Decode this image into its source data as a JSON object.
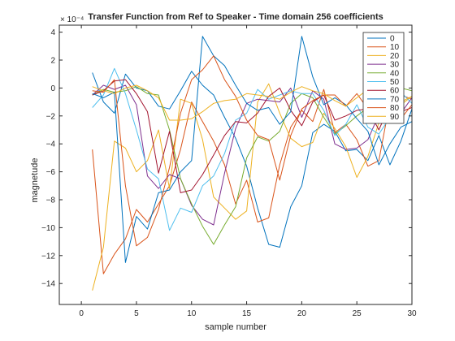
{
  "chart_data": {
    "type": "line",
    "title": "Transfer Function from Ref to Speaker - Time domain 256 coefficients",
    "xlabel": "sample number",
    "ylabel": "magnetude",
    "exponent_label": "× 10⁻⁴",
    "xlim": [
      -2,
      30
    ],
    "ylim": [
      -15.5,
      4.5
    ],
    "xticks": [
      0,
      5,
      10,
      15,
      20,
      25,
      30
    ],
    "yticks": [
      4,
      2,
      0,
      -2,
      -4,
      -6,
      -8,
      -10,
      -12,
      -14
    ],
    "grid": false,
    "legend_position": "top-right",
    "x": [
      1,
      2,
      3,
      4,
      5,
      6,
      7,
      8,
      9,
      10,
      11,
      12,
      13,
      14,
      15,
      16,
      17,
      18,
      19,
      20,
      21,
      22,
      23,
      24,
      25,
      26,
      27,
      28,
      29,
      30
    ],
    "series": [
      {
        "name": "0",
        "color": "#0072BD",
        "values": [
          1.1,
          -1.0,
          -1.8,
          1.0,
          0.0,
          -0.2,
          -1.3,
          -1.5,
          -0.2,
          1.2,
          0.2,
          -0.5,
          -2.1,
          -3.6,
          -5.6,
          -8.6,
          -11.2,
          -11.4,
          -8.5,
          -7.0,
          -3.2,
          -2.6,
          -3.1,
          -4.5,
          -4.4,
          -5.2,
          -3.4,
          -5.5,
          -3.8,
          -1.5
        ]
      },
      {
        "name": "10",
        "color": "#D95319",
        "values": [
          -4.4,
          -13.3,
          -11.9,
          -10.8,
          -8.7,
          -9.6,
          -8.3,
          -7.0,
          -4.4,
          -1.0,
          -2.4,
          -3.8,
          -5.5,
          -8.3,
          -6.6,
          -9.6,
          -9.3,
          -5.5,
          -2.8,
          -1.6,
          -2.4,
          -0.1,
          -3.2,
          -2.6,
          -3.7,
          -5.6,
          -5.2,
          -1.0,
          -0.5,
          -0.8
        ]
      },
      {
        "name": "20",
        "color": "#EDB120",
        "values": [
          -14.5,
          -11.4,
          -3.8,
          -4.3,
          -6.0,
          -5.2,
          -3.0,
          -7.2,
          -0.8,
          -1.1,
          -3.7,
          -7.8,
          -8.6,
          -9.4,
          -8.8,
          -1.0,
          0.3,
          -1.8,
          -3.6,
          -4.2,
          -3.9,
          -1.8,
          -2.9,
          -4.2,
          -6.4,
          -4.9,
          -2.5,
          -2.3,
          -1.2,
          -0.6
        ]
      },
      {
        "name": "30",
        "color": "#7E2F8E",
        "values": [
          -0.5,
          0.2,
          -0.1,
          0.2,
          -1.2,
          -6.3,
          -7.2,
          -6.2,
          -6.5,
          -8.4,
          -9.4,
          -9.8,
          -6.1,
          -2.9,
          -1.1,
          -0.8,
          -0.9,
          -1.0,
          0.0,
          -2.1,
          -0.2,
          -0.8,
          -4.0,
          -4.4,
          -4.3,
          -3.7,
          -1.9,
          -0.5,
          -1.8,
          -0.7
        ]
      },
      {
        "name": "40",
        "color": "#77AC30",
        "values": [
          -0.5,
          -0.1,
          -0.3,
          -0.2,
          0.1,
          -0.4,
          -0.5,
          -3.0,
          -6.5,
          -8.3,
          -9.9,
          -11.2,
          -9.8,
          -8.5,
          -5.0,
          -3.5,
          -3.8,
          -3.1,
          -1.1,
          -0.4,
          -0.7,
          -2.1,
          -3.3,
          -2.7,
          -2.0,
          -1.4,
          -1.8,
          -0.4,
          0.0,
          -0.2
        ]
      },
      {
        "name": "50",
        "color": "#4DBEEE",
        "values": [
          -1.4,
          -0.5,
          1.4,
          -0.4,
          -3.0,
          -5.8,
          -6.5,
          -10.2,
          -8.6,
          -8.9,
          -7.0,
          -6.3,
          -4.7,
          -2.3,
          -1.8,
          -0.1,
          -0.8,
          -0.5,
          -0.2,
          -0.4,
          -0.4,
          -1.6,
          -3.4,
          -2.6,
          -1.2,
          -2.8,
          -3.3,
          -2.1,
          -0.3,
          -1.1
        ]
      },
      {
        "name": "60",
        "color": "#A2142F",
        "values": [
          -0.5,
          -0.2,
          0.5,
          0.6,
          -0.4,
          -1.7,
          -6.1,
          -3.1,
          -7.5,
          -7.3,
          -6.2,
          -4.8,
          -3.4,
          -2.4,
          -2.5,
          -1.8,
          -0.6,
          0.0,
          -1.6,
          -2.7,
          -1.0,
          -0.5,
          -2.3,
          -2.0,
          -1.6,
          -1.5,
          -3.0,
          -1.2,
          -1.7,
          -1.4
        ]
      },
      {
        "name": "70",
        "color": "#0072BD",
        "values": [
          -0.4,
          -0.7,
          -0.3,
          -12.5,
          -9.2,
          -10.1,
          -7.5,
          -7.3,
          -6.0,
          -5.2,
          3.7,
          2.3,
          1.6,
          0.2,
          -1.1,
          -1.6,
          -1.4,
          -2.6,
          -1.7,
          3.7,
          0.8,
          -1.2,
          -0.7,
          -1.2,
          -2.2,
          -3.1,
          -5.5,
          -4.0,
          -2.8,
          -2.4
        ]
      },
      {
        "name": "80",
        "color": "#D95319",
        "values": [
          -0.2,
          -0.3,
          0.6,
          -7.0,
          -11.3,
          -10.7,
          -8.7,
          -5.7,
          -1.8,
          0.6,
          1.3,
          2.3,
          0.6,
          -0.6,
          -2.3,
          -3.4,
          -3.7,
          -6.6,
          -3.4,
          -1.5,
          -0.9,
          -0.5,
          -0.5,
          -1.3,
          -0.4,
          -1.5,
          -2.3,
          -1.8,
          -2.2,
          -1.2
        ]
      },
      {
        "name": "90",
        "color": "#EDB120",
        "values": [
          0.1,
          -0.2,
          -0.4,
          0.0,
          0.2,
          -0.2,
          -0.7,
          -2.3,
          -2.3,
          -2.2,
          -1.7,
          -1.1,
          -0.9,
          -0.8,
          -0.4,
          -0.5,
          -0.6,
          -0.8,
          -0.3,
          0.1,
          -0.2,
          -0.4,
          -0.9,
          -1.3,
          -0.7,
          -0.1,
          -0.2,
          -0.6,
          -1.0,
          -0.6
        ]
      }
    ]
  }
}
